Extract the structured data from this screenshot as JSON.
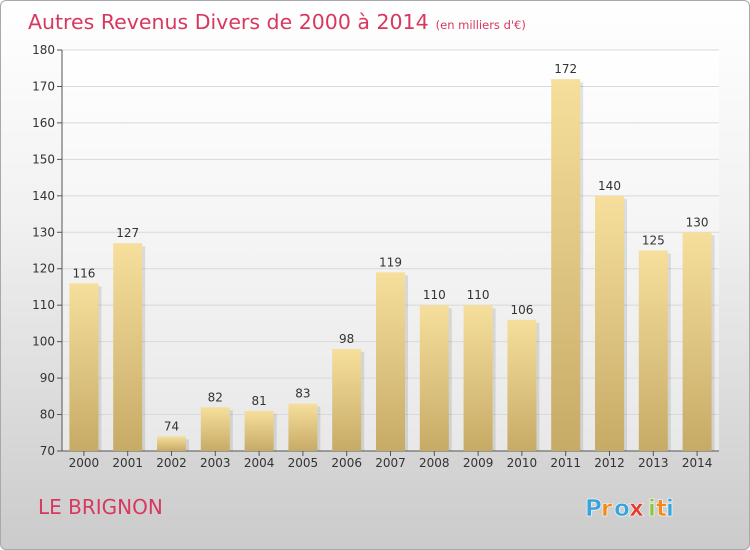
{
  "header": {
    "title": "Autres Revenus Divers de 2000 à 2014",
    "unit": "(en milliers d'€)"
  },
  "commune": "LE BRIGNON",
  "logo": {
    "text": "Proxiti",
    "colors": [
      "#3aa3d9",
      "#f08a1c",
      "#3aa3d9",
      "#e63a2e",
      "#8cc63f",
      "#f08a1c",
      "#3aa3d9"
    ]
  },
  "colors": {
    "title": "#d8385f",
    "bar_light": "#f6df9c",
    "bar_dark": "#c6ab66",
    "axis_text": "#333333",
    "grid": "#d9d9d9"
  },
  "chart_data": {
    "type": "bar",
    "title": "Autres Revenus Divers de 2000 à 2014",
    "subtitle": "(en milliers d'€)",
    "categories": [
      "2000",
      "2001",
      "2002",
      "2003",
      "2004",
      "2005",
      "2006",
      "2007",
      "2008",
      "2009",
      "2010",
      "2011",
      "2012",
      "2013",
      "2014"
    ],
    "values": [
      116,
      127,
      74,
      82,
      81,
      83,
      98,
      119,
      110,
      110,
      106,
      172,
      140,
      125,
      130
    ],
    "xlabel": "",
    "ylabel": "",
    "ylim": [
      70,
      180
    ],
    "yticks": [
      70,
      80,
      90,
      100,
      110,
      120,
      130,
      140,
      150,
      160,
      170,
      180
    ],
    "grid": true,
    "data_labels": true
  }
}
